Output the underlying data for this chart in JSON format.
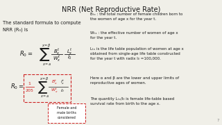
{
  "title": "NRR (Net Reproductive Rate)",
  "bg_color": "#f0efe8",
  "text_color": "#1a1a1a",
  "red_color": "#cc2222",
  "left_text1": "The standard formula to compute",
  "left_text2": "NRR (R₀) is",
  "box_text": "Female and\nmale births\nconsidered",
  "right_texts": [
    "Bₜₓ : the total number of female children born to\nthe women of age x for the year t.",
    "Wₜₓ : the effective number of women of age x\nfor the year t.",
    "Lₜₓ is the life table population of women at age x\nobtained from single-age life table constructed\nfor the year t with radix l₀ =100,000.",
    "Here α and β are the lower and upper limits of\nreproductive ages of women.",
    "The quantity Lₜₓ/l₀ is female life-table based\nsurvival rate from birth to the age x."
  ]
}
